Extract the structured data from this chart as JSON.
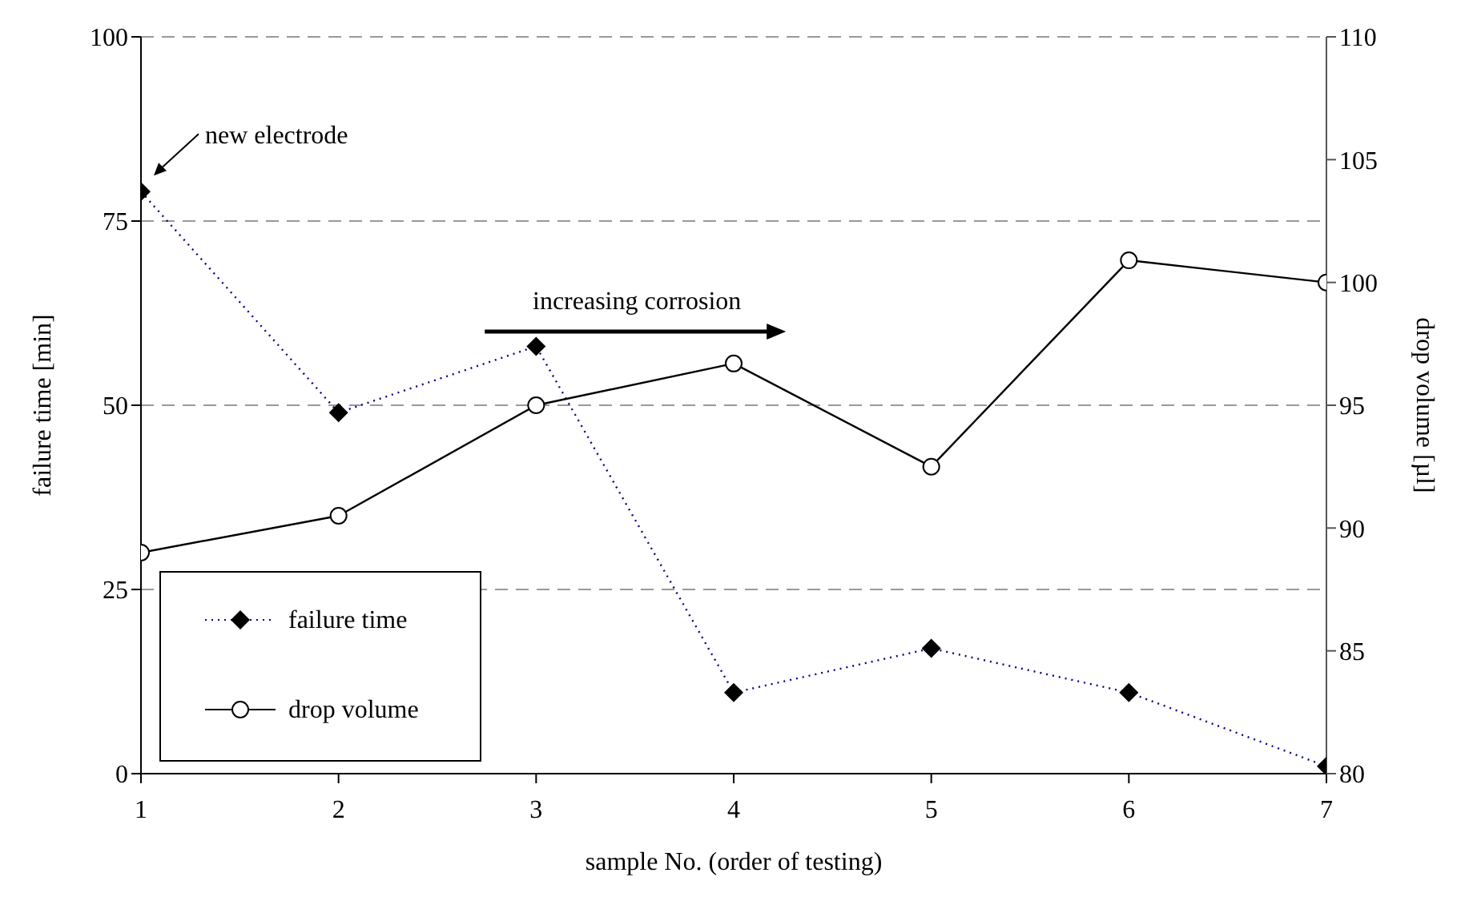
{
  "chart_data": {
    "type": "line",
    "xlabel": "sample No. (order of testing)",
    "ylabel": "failure time [min]",
    "y2label": "drop volume [µl]",
    "x": [
      1,
      2,
      3,
      4,
      5,
      6,
      7
    ],
    "series": [
      {
        "name": "failure time",
        "color": "#00008b",
        "values": [
          79,
          49,
          58,
          11,
          17,
          11,
          1
        ],
        "marker": "diamond",
        "line_style": "dotted"
      },
      {
        "name": "drop volume",
        "color": "#000000",
        "values": [
          89,
          90.5,
          95,
          96.7,
          92.5,
          100.9,
          100
        ],
        "axis": "y2",
        "marker": "circle",
        "line_style": "solid"
      }
    ],
    "xlim": [
      1,
      7
    ],
    "xticks": [
      1,
      2,
      3,
      4,
      5,
      6,
      7
    ],
    "ylim": [
      0,
      100
    ],
    "yticks": [
      0,
      25,
      50,
      75,
      100
    ],
    "y2lim": [
      80,
      110
    ],
    "y2ticks": [
      80,
      85,
      90,
      95,
      100,
      105,
      110
    ],
    "grid": "y",
    "legend": "bottom left",
    "annotations": [
      {
        "text": "new electrode",
        "x": 1,
        "y": 79
      },
      "increasing corrosion"
    ]
  }
}
